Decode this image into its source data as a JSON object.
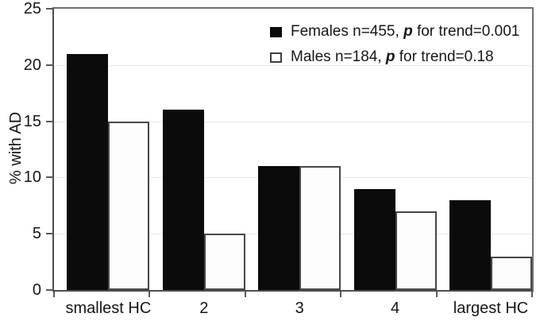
{
  "chart_data": {
    "type": "bar",
    "title": "",
    "ylabel": "% with AD",
    "xlabel": "",
    "categories": [
      "smallest HC",
      "2",
      "3",
      "4",
      "largest HC"
    ],
    "series": [
      {
        "name": "Females",
        "values": [
          21,
          16,
          11,
          9,
          8
        ],
        "swatch": "filled-black-square",
        "color": "#0b0b0b",
        "legend": {
          "prefix": "Females n=455, ",
          "italic": "p",
          "suffix": " for trend=0.001"
        }
      },
      {
        "name": "Males",
        "values": [
          15,
          5,
          11,
          7,
          3
        ],
        "swatch": "open-white-square",
        "color": "#fdfdfd",
        "border_color": "#474747",
        "legend": {
          "prefix": "Males n=184, ",
          "italic": "p",
          "suffix": " for trend=0.18"
        }
      }
    ],
    "ylim": [
      0,
      25
    ],
    "y_ticks": [
      0,
      5,
      10,
      15,
      20,
      25
    ],
    "grid": "faint-horizontal-lines",
    "legend_position": "top-right-inside"
  },
  "colors": {
    "background": "#ffffff",
    "axis": "#4e4e4e",
    "text": "#161616",
    "gridline": "#dcdcdc",
    "bar_females": "#0b0b0b",
    "bar_males": "#fdfdfd",
    "bar_males_border": "#474747"
  }
}
